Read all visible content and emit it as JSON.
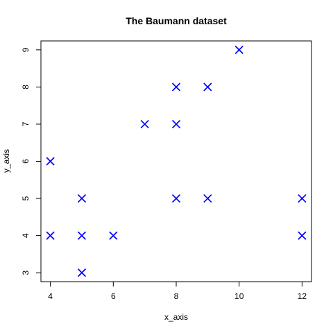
{
  "chart_data": {
    "type": "scatter",
    "title": "The Baumann dataset",
    "xlabel": "x_axis",
    "ylabel": "y_axis",
    "xlim": [
      3.7,
      12.3
    ],
    "ylim": [
      2.76,
      9.24
    ],
    "xticks": [
      4,
      6,
      8,
      10,
      12
    ],
    "yticks": [
      3,
      4,
      5,
      6,
      7,
      8,
      9
    ],
    "grid": false,
    "legend": "none",
    "marker": "x",
    "marker_color": "#0000ff",
    "points": [
      {
        "x": 4,
        "y": 6
      },
      {
        "x": 4,
        "y": 4
      },
      {
        "x": 5,
        "y": 5
      },
      {
        "x": 5,
        "y": 4
      },
      {
        "x": 5,
        "y": 3
      },
      {
        "x": 6,
        "y": 4
      },
      {
        "x": 7,
        "y": 7
      },
      {
        "x": 8,
        "y": 8
      },
      {
        "x": 8,
        "y": 7
      },
      {
        "x": 8,
        "y": 5
      },
      {
        "x": 9,
        "y": 8
      },
      {
        "x": 9,
        "y": 5
      },
      {
        "x": 10,
        "y": 9
      },
      {
        "x": 12,
        "y": 5
      },
      {
        "x": 12,
        "y": 4
      }
    ]
  }
}
